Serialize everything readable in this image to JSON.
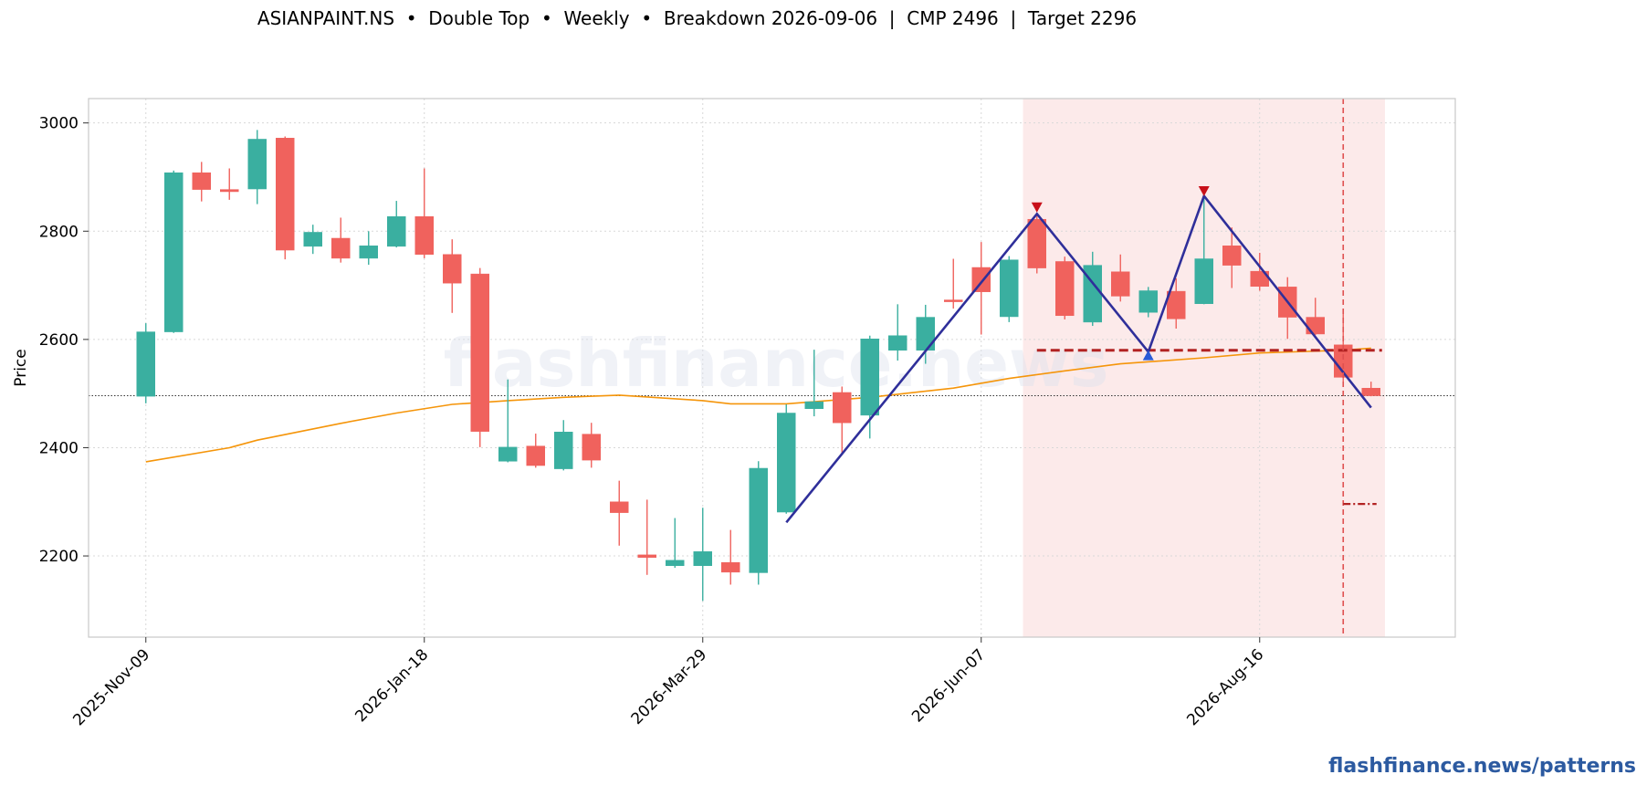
{
  "title": "ASIANPAINT.NS  •  Double Top  •  Weekly  •  Breakdown 2026-09-06  |  CMP 2496  |  Target 2296",
  "footer": "flashfinance.news/patterns",
  "watermark": "flashfinance.news",
  "colors": {
    "up": "#3aafa0",
    "down": "#f0625d",
    "sma": "#f5950a",
    "pattern": "#2f2f9a",
    "neckline": "#b22222",
    "marker_top": "#c8101a",
    "marker_trough": "#2a5bd6",
    "pattern_zone": "#fbe5e5",
    "breakout_line": "#e05050"
  },
  "chart_data": {
    "type": "candlestick",
    "title": "ASIANPAINT.NS  •  Double Top  •  Weekly  •  Breakdown 2026-09-06  |  CMP 2496  |  Target 2296",
    "xlabel": "",
    "ylabel": "Price",
    "ylim": [
      2050,
      3045
    ],
    "yticks": [
      2200,
      2400,
      2600,
      2800,
      3000
    ],
    "xticks": [
      "2025-Nov-09",
      "2026-Jan-18",
      "2026-Mar-29",
      "2026-Jun-07",
      "2026-Aug-16"
    ],
    "grid": true,
    "candles": [
      {
        "date": "2025-Nov-09",
        "open": 2495,
        "high": 2630,
        "low": 2482,
        "close": 2614
      },
      {
        "date": "2025-Nov-16",
        "open": 2614,
        "high": 2912,
        "low": 2612,
        "close": 2908
      },
      {
        "date": "2025-Nov-23",
        "open": 2908,
        "high": 2928,
        "low": 2855,
        "close": 2877
      },
      {
        "date": "2025-Nov-30",
        "open": 2877,
        "high": 2916,
        "low": 2858,
        "close": 2873
      },
      {
        "date": "2025-Dec-07",
        "open": 2878,
        "high": 2987,
        "low": 2850,
        "close": 2970
      },
      {
        "date": "2025-Dec-14",
        "open": 2972,
        "high": 2975,
        "low": 2748,
        "close": 2765
      },
      {
        "date": "2025-Dec-21",
        "open": 2772,
        "high": 2812,
        "low": 2758,
        "close": 2798
      },
      {
        "date": "2025-Dec-28",
        "open": 2787,
        "high": 2825,
        "low": 2742,
        "close": 2750
      },
      {
        "date": "2026-Jan-04",
        "open": 2750,
        "high": 2800,
        "low": 2738,
        "close": 2773
      },
      {
        "date": "2026-Jan-11",
        "open": 2772,
        "high": 2856,
        "low": 2770,
        "close": 2827
      },
      {
        "date": "2026-Jan-18",
        "open": 2827,
        "high": 2916,
        "low": 2750,
        "close": 2757
      },
      {
        "date": "2026-Jan-25",
        "open": 2757,
        "high": 2785,
        "low": 2649,
        "close": 2704
      },
      {
        "date": "2026-Feb-01",
        "open": 2721,
        "high": 2732,
        "low": 2401,
        "close": 2430
      },
      {
        "date": "2026-Feb-08",
        "open": 2375,
        "high": 2526,
        "low": 2373,
        "close": 2401
      },
      {
        "date": "2026-Feb-15",
        "open": 2403,
        "high": 2426,
        "low": 2363,
        "close": 2367
      },
      {
        "date": "2026-Feb-22",
        "open": 2361,
        "high": 2451,
        "low": 2358,
        "close": 2429
      },
      {
        "date": "2026-Mar-01",
        "open": 2425,
        "high": 2446,
        "low": 2363,
        "close": 2377
      },
      {
        "date": "2026-Mar-08",
        "open": 2300,
        "high": 2339,
        "low": 2219,
        "close": 2280
      },
      {
        "date": "2026-Mar-15",
        "open": 2202,
        "high": 2304,
        "low": 2165,
        "close": 2197
      },
      {
        "date": "2026-Mar-22",
        "open": 2182,
        "high": 2270,
        "low": 2178,
        "close": 2192
      },
      {
        "date": "2026-Mar-29",
        "open": 2182,
        "high": 2289,
        "low": 2117,
        "close": 2208
      },
      {
        "date": "2026-Apr-05",
        "open": 2188,
        "high": 2248,
        "low": 2147,
        "close": 2170
      },
      {
        "date": "2026-Apr-12",
        "open": 2169,
        "high": 2375,
        "low": 2147,
        "close": 2362
      },
      {
        "date": "2026-Apr-19",
        "open": 2281,
        "high": 2480,
        "low": 2278,
        "close": 2464
      },
      {
        "date": "2026-Apr-26",
        "open": 2472,
        "high": 2581,
        "low": 2458,
        "close": 2485
      },
      {
        "date": "2026-May-03",
        "open": 2502,
        "high": 2513,
        "low": 2388,
        "close": 2446
      },
      {
        "date": "2026-May-10",
        "open": 2460,
        "high": 2607,
        "low": 2417,
        "close": 2601
      },
      {
        "date": "2026-May-17",
        "open": 2580,
        "high": 2665,
        "low": 2561,
        "close": 2607
      },
      {
        "date": "2026-May-24",
        "open": 2580,
        "high": 2664,
        "low": 2555,
        "close": 2641
      },
      {
        "date": "2026-May-31",
        "open": 2673,
        "high": 2749,
        "low": 2657,
        "close": 2671
      },
      {
        "date": "2026-Jun-07",
        "open": 2733,
        "high": 2780,
        "low": 2609,
        "close": 2688
      },
      {
        "date": "2026-Jun-14",
        "open": 2642,
        "high": 2754,
        "low": 2632,
        "close": 2747
      },
      {
        "date": "2026-Jun-21",
        "open": 2822,
        "high": 2830,
        "low": 2722,
        "close": 2732
      },
      {
        "date": "2026-Jun-28",
        "open": 2744,
        "high": 2753,
        "low": 2637,
        "close": 2644
      },
      {
        "date": "2026-Jul-05",
        "open": 2632,
        "high": 2762,
        "low": 2625,
        "close": 2737
      },
      {
        "date": "2026-Jul-12",
        "open": 2725,
        "high": 2757,
        "low": 2670,
        "close": 2680
      },
      {
        "date": "2026-Jul-19",
        "open": 2650,
        "high": 2697,
        "low": 2641,
        "close": 2690
      },
      {
        "date": "2026-Jul-26",
        "open": 2689,
        "high": 2713,
        "low": 2620,
        "close": 2638
      },
      {
        "date": "2026-Aug-02",
        "open": 2666,
        "high": 2868,
        "low": 2665,
        "close": 2749
      },
      {
        "date": "2026-Aug-09",
        "open": 2773,
        "high": 2807,
        "low": 2695,
        "close": 2737
      },
      {
        "date": "2026-Aug-16",
        "open": 2726,
        "high": 2760,
        "low": 2690,
        "close": 2698
      },
      {
        "date": "2026-Aug-23",
        "open": 2697,
        "high": 2715,
        "low": 2601,
        "close": 2641
      },
      {
        "date": "2026-Aug-30",
        "open": 2641,
        "high": 2677,
        "low": 2608,
        "close": 2610
      },
      {
        "date": "2026-Sep-06",
        "open": 2590,
        "high": 2655,
        "low": 2520,
        "close": 2530
      },
      {
        "date": "2026-Sep-13",
        "open": 2510,
        "high": 2522,
        "low": 2495,
        "close": 2496
      }
    ],
    "sma": [
      [
        0,
        2374
      ],
      [
        3,
        2400
      ],
      [
        4,
        2414
      ],
      [
        7,
        2445
      ],
      [
        9,
        2464
      ],
      [
        11,
        2480
      ],
      [
        13,
        2487
      ],
      [
        15,
        2493
      ],
      [
        17,
        2497
      ],
      [
        20,
        2487
      ],
      [
        21,
        2481
      ],
      [
        23,
        2481
      ],
      [
        25,
        2489
      ],
      [
        26,
        2493
      ],
      [
        29,
        2510
      ],
      [
        31,
        2528
      ],
      [
        33,
        2542
      ],
      [
        35,
        2555
      ],
      [
        38,
        2566
      ],
      [
        40,
        2575
      ],
      [
        43,
        2580
      ],
      [
        44,
        2584
      ]
    ],
    "pattern_line": [
      [
        23,
        2262
      ],
      [
        32,
        2832
      ],
      [
        36,
        2577
      ],
      [
        38,
        2865
      ],
      [
        44,
        2474
      ]
    ],
    "peaks": [
      [
        32,
        2843
      ],
      [
        38,
        2873
      ]
    ],
    "trough": [
      36,
      2570
    ],
    "neckline": {
      "value": 2580,
      "from": 32,
      "to": 44
    },
    "cmp_line": 2496,
    "target": {
      "value": 2296,
      "from": 43,
      "to": 44
    },
    "breakout_index": 43,
    "pattern_zone": [
      32,
      44
    ]
  }
}
